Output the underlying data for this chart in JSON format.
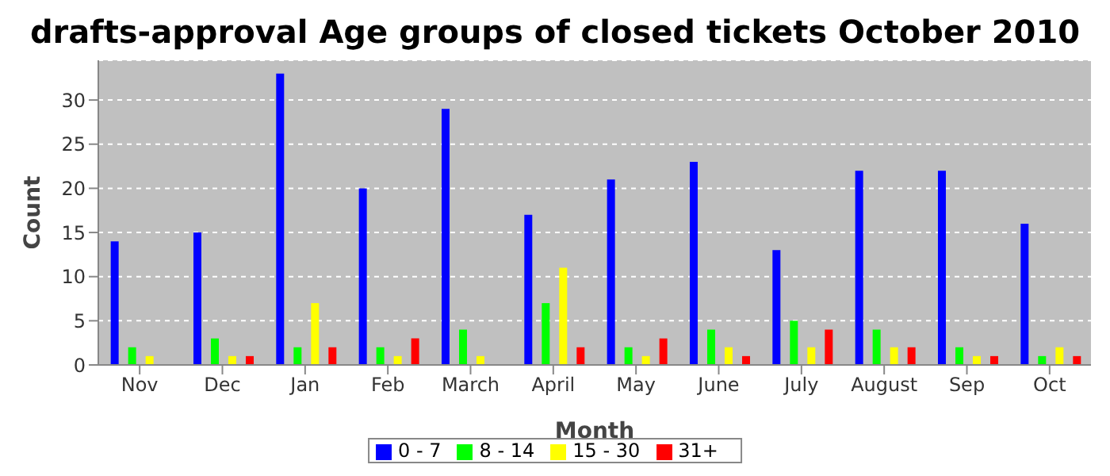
{
  "chart_data": {
    "type": "bar",
    "title": "drafts-approval Age groups of closed tickets October 2010",
    "xlabel": "Month",
    "ylabel": "Count",
    "categories": [
      "Nov",
      "Dec",
      "Jan",
      "Feb",
      "March",
      "April",
      "May",
      "June",
      "July",
      "August",
      "Sep",
      "Oct"
    ],
    "series": [
      {
        "name": "0 - 7",
        "color": "#0000ff",
        "values": [
          14,
          15,
          33,
          20,
          29,
          17,
          21,
          23,
          13,
          22,
          22,
          16
        ]
      },
      {
        "name": "8 - 14",
        "color": "#00ff00",
        "values": [
          2,
          3,
          2,
          2,
          4,
          7,
          2,
          4,
          5,
          4,
          2,
          1
        ]
      },
      {
        "name": "15 - 30",
        "color": "#ffff00",
        "values": [
          1,
          1,
          7,
          1,
          1,
          11,
          1,
          2,
          2,
          2,
          1,
          2
        ]
      },
      {
        "name": "31+",
        "color": "#ff0000",
        "values": [
          0,
          1,
          2,
          3,
          0,
          2,
          3,
          1,
          4,
          2,
          1,
          1
        ]
      }
    ],
    "ylim": [
      0,
      34.5
    ],
    "yticks": [
      0,
      5,
      10,
      15,
      20,
      25,
      30
    ],
    "grid": "y",
    "legend": "bottom"
  }
}
